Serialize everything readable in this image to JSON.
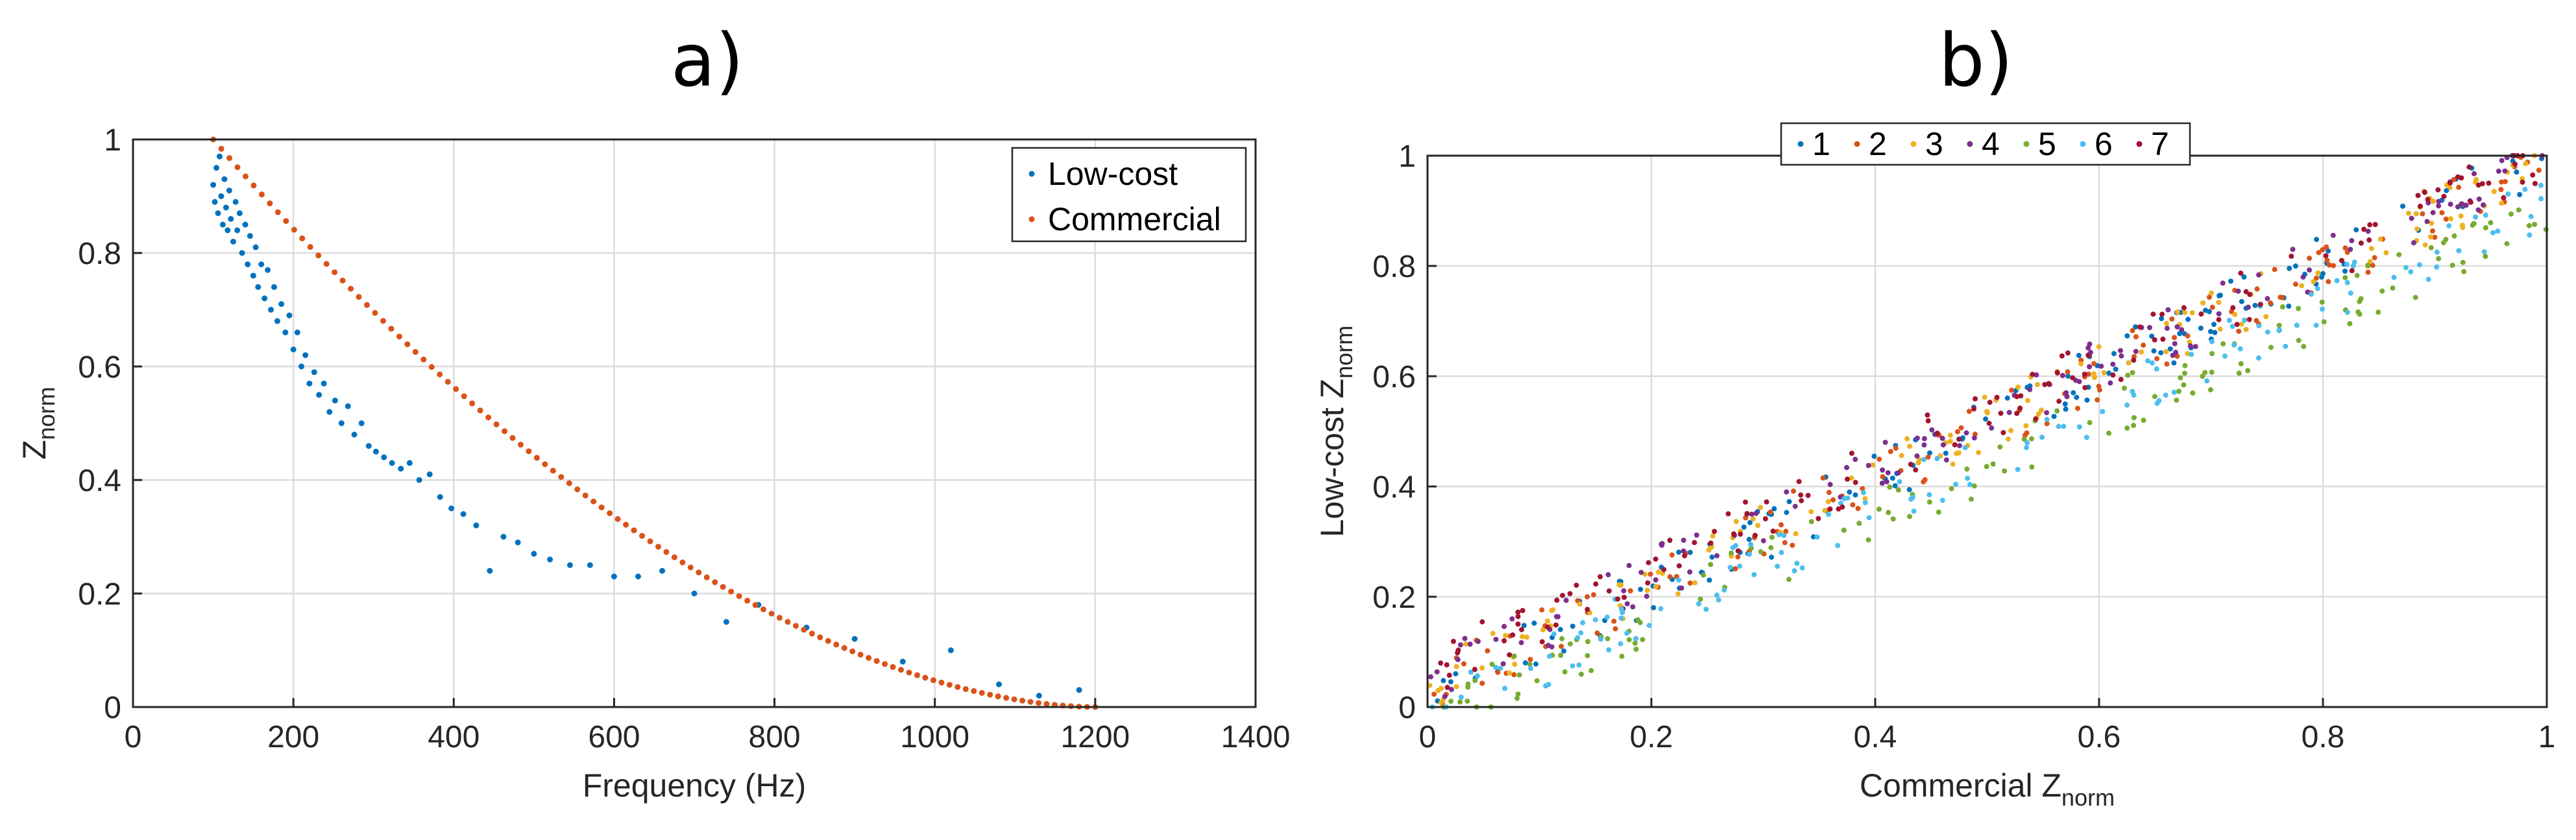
{
  "figure": {
    "panel_a_title": "a)",
    "panel_b_title": "b)"
  },
  "chart_data": [
    {
      "type": "scatter",
      "title": "a)",
      "xlabel": "Frequency (Hz)",
      "ylabel_main": "Z",
      "ylabel_sub": "norm",
      "xlim": [
        0,
        1400
      ],
      "ylim": [
        0,
        1
      ],
      "xticks": [
        0,
        200,
        400,
        600,
        800,
        1000,
        1200,
        1400
      ],
      "yticks": [
        0,
        0.2,
        0.4,
        0.6,
        0.8,
        1
      ],
      "xtick_labels": [
        "0",
        "200",
        "400",
        "600",
        "800",
        "1000",
        "1200",
        "1400"
      ],
      "ytick_labels": [
        "0",
        "0.2",
        "0.4",
        "0.6",
        "0.8",
        "1"
      ],
      "grid": true,
      "legend_position": "top-right",
      "series": [
        {
          "name": "Low-cost",
          "color": "#0072BD",
          "points": [
            [
              100,
              0.92
            ],
            [
              102,
              0.89
            ],
            [
              104,
              0.95
            ],
            [
              106,
              0.87
            ],
            [
              108,
              0.97
            ],
            [
              110,
              0.9
            ],
            [
              112,
              0.85
            ],
            [
              114,
              0.93
            ],
            [
              116,
              0.88
            ],
            [
              118,
              0.84
            ],
            [
              120,
              0.91
            ],
            [
              122,
              0.86
            ],
            [
              125,
              0.82
            ],
            [
              128,
              0.89
            ],
            [
              130,
              0.84
            ],
            [
              133,
              0.87
            ],
            [
              136,
              0.8
            ],
            [
              140,
              0.85
            ],
            [
              143,
              0.78
            ],
            [
              146,
              0.83
            ],
            [
              150,
              0.76
            ],
            [
              153,
              0.81
            ],
            [
              156,
              0.74
            ],
            [
              160,
              0.78
            ],
            [
              164,
              0.72
            ],
            [
              168,
              0.77
            ],
            [
              172,
              0.7
            ],
            [
              176,
              0.74
            ],
            [
              180,
              0.68
            ],
            [
              185,
              0.71
            ],
            [
              190,
              0.66
            ],
            [
              195,
              0.69
            ],
            [
              200,
              0.63
            ],
            [
              205,
              0.66
            ],
            [
              210,
              0.6
            ],
            [
              215,
              0.62
            ],
            [
              220,
              0.57
            ],
            [
              226,
              0.59
            ],
            [
              232,
              0.55
            ],
            [
              238,
              0.57
            ],
            [
              245,
              0.52
            ],
            [
              252,
              0.54
            ],
            [
              260,
              0.5
            ],
            [
              268,
              0.53
            ],
            [
              276,
              0.48
            ],
            [
              285,
              0.5
            ],
            [
              294,
              0.46
            ],
            [
              303,
              0.45
            ],
            [
              313,
              0.44
            ],
            [
              323,
              0.43
            ],
            [
              334,
              0.42
            ],
            [
              345,
              0.43
            ],
            [
              357,
              0.4
            ],
            [
              370,
              0.41
            ],
            [
              383,
              0.37
            ],
            [
              397,
              0.35
            ],
            [
              412,
              0.34
            ],
            [
              428,
              0.32
            ],
            [
              445,
              0.24
            ],
            [
              462,
              0.3
            ],
            [
              480,
              0.29
            ],
            [
              500,
              0.27
            ],
            [
              520,
              0.26
            ],
            [
              545,
              0.25
            ],
            [
              570,
              0.25
            ],
            [
              600,
              0.23
            ],
            [
              630,
              0.23
            ],
            [
              660,
              0.24
            ],
            [
              700,
              0.2
            ],
            [
              740,
              0.15
            ],
            [
              780,
              0.18
            ],
            [
              840,
              0.14
            ],
            [
              900,
              0.12
            ],
            [
              960,
              0.08
            ],
            [
              1020,
              0.1
            ],
            [
              1080,
              0.04
            ],
            [
              1130,
              0.02
            ],
            [
              1180,
              0.03
            ]
          ]
        },
        {
          "name": "Commercial",
          "color": "#D95319",
          "model": {
            "form": "power-law decay",
            "f_start_hz": 100,
            "f_end_hz": 1200,
            "exponent": 1.8,
            "point_count": 110
          }
        }
      ]
    },
    {
      "type": "scatter",
      "title": "b)",
      "xlabel_main": "Commercial Z",
      "xlabel_sub": "norm",
      "ylabel_main": "Low-cost Z",
      "ylabel_sub": "norm",
      "xlim": [
        0,
        1
      ],
      "ylim": [
        0,
        1
      ],
      "xticks": [
        0,
        0.2,
        0.4,
        0.6,
        0.8,
        1
      ],
      "yticks": [
        0,
        0.2,
        0.4,
        0.6,
        0.8,
        1
      ],
      "xtick_labels": [
        "0",
        "0.2",
        "0.4",
        "0.6",
        "0.8",
        "1"
      ],
      "ytick_labels": [
        "0",
        "0.2",
        "0.4",
        "0.6",
        "0.8",
        "1"
      ],
      "grid": true,
      "legend_position": "top-center",
      "series": [
        {
          "name": "1",
          "color": "#0072BD",
          "x_start": 0.0,
          "x_end": 1.0,
          "y_offset": 0.02,
          "slope": 0.98,
          "points_per_series": 140
        },
        {
          "name": "2",
          "color": "#D95319",
          "x_start": 0.0,
          "x_end": 1.0,
          "y_offset": 0.03,
          "slope": 0.96,
          "points_per_series": 140
        },
        {
          "name": "3",
          "color": "#EDB120",
          "x_start": 0.0,
          "x_end": 1.0,
          "y_offset": 0.04,
          "slope": 0.95,
          "points_per_series": 140
        },
        {
          "name": "4",
          "color": "#7E2F8E",
          "x_start": 0.0,
          "x_end": 1.0,
          "y_offset": 0.05,
          "slope": 0.95,
          "points_per_series": 140
        },
        {
          "name": "5",
          "color": "#77AC30",
          "x_start": 0.0,
          "x_end": 1.0,
          "y_offset": -0.02,
          "slope": 0.92,
          "points_per_series": 140
        },
        {
          "name": "6",
          "color": "#4DBEEE",
          "x_start": 0.0,
          "x_end": 1.0,
          "y_offset": -0.01,
          "slope": 0.93,
          "points_per_series": 140
        },
        {
          "name": "7",
          "color": "#A2142F",
          "x_start": 0.0,
          "x_end": 1.0,
          "y_offset": 0.06,
          "slope": 0.94,
          "points_per_series": 140
        }
      ]
    }
  ]
}
